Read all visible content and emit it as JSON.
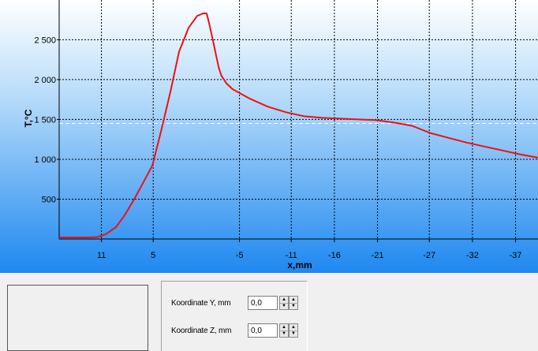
{
  "chart": {
    "ylabel": "T,°C",
    "xlabel": "x,mm",
    "y_ticks": [
      "2 500",
      "2 000",
      "1 500",
      "1 000",
      "500"
    ],
    "x_ticks": [
      "11",
      "5",
      "-5",
      "-11",
      "-16",
      "-21",
      "-27",
      "-32",
      "-37"
    ]
  },
  "chart_data": {
    "type": "line",
    "title": "",
    "xlabel": "x,mm",
    "ylabel": "T,°C",
    "x_tick_labels": [
      "11",
      "5",
      "-5",
      "-11",
      "-16",
      "-21",
      "-27",
      "-32",
      "-37"
    ],
    "y_tick_labels": [
      "2 500",
      "2 000",
      "1 500",
      "1 000",
      "500"
    ],
    "ylim": [
      0,
      2850
    ],
    "grid": true,
    "series": [
      {
        "color": "#ee1111",
        "x": [
          15.9,
          14.7,
          13.6,
          12.5,
          11.5,
          10.5,
          9.3,
          8.3,
          7.2,
          6.2,
          5.1,
          4.1,
          3.0,
          2.0,
          0.9,
          -0.1,
          -0.8,
          -1.2,
          -1.5,
          -2.0,
          -2.4,
          -2.6,
          -2.9,
          -3.5,
          -4.2,
          -5.2,
          -6.2,
          -8.3,
          -10.4,
          -12.5,
          -14.6,
          -16.7,
          -18.8,
          -20.9,
          -23.0,
          -25.0,
          -27.1,
          -29.2,
          -31.3,
          -33.4,
          -35.5,
          -37.6,
          -39.6
        ],
        "y": [
          20,
          20,
          20,
          20,
          25,
          60,
          150,
          300,
          500,
          700,
          920,
          1350,
          1850,
          2350,
          2650,
          2800,
          2830,
          2830,
          2700,
          2450,
          2250,
          2150,
          2050,
          1950,
          1880,
          1820,
          1760,
          1660,
          1590,
          1540,
          1520,
          1510,
          1500,
          1490,
          1460,
          1420,
          1330,
          1270,
          1210,
          1160,
          1110,
          1060,
          1020
        ]
      }
    ],
    "reference_line_y": 1450
  },
  "coords": {
    "y_label": "Koordinate Y, mm",
    "y_value": "0,0",
    "z_label": "Koordinate Z, mm",
    "z_value": "0,0"
  },
  "colors": {
    "plot_top": "#ffffff",
    "plot_bottom": "#1e88f0",
    "line": "#ee1111"
  }
}
